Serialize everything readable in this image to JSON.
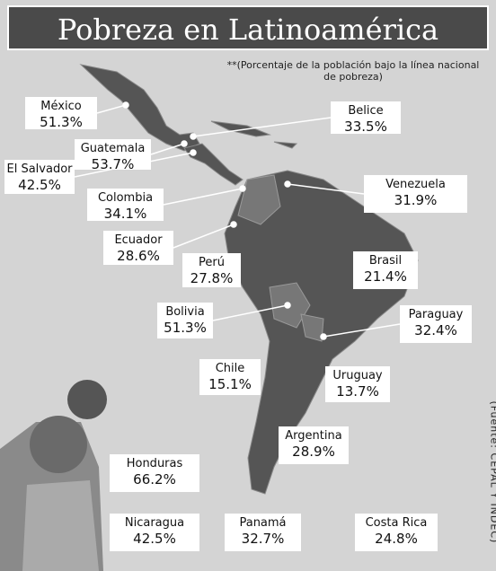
{
  "title": "Pobreza en Latinoamérica",
  "note": "**(Porcentaje de la población bajo la línea nacional de pobreza)",
  "source": "(Fuente: CEPAL Y INDEC)",
  "labels": [
    {
      "country": "México",
      "value": "51.3%"
    },
    {
      "country": "Belice",
      "value": "33.5%"
    },
    {
      "country": "Guatemala",
      "value": "53.7%"
    },
    {
      "country": "El Salvador",
      "value": "42.5%"
    },
    {
      "country": "Venezuela",
      "value": "31.9%"
    },
    {
      "country": "Colombia",
      "value": "34.1%"
    },
    {
      "country": "Ecuador",
      "value": "28.6%"
    },
    {
      "country": "Perú",
      "value": "27.8%"
    },
    {
      "country": "Brasil",
      "value": "21.4%"
    },
    {
      "country": "Bolivia",
      "value": "51.3%"
    },
    {
      "country": "Paraguay",
      "value": "32.4%"
    },
    {
      "country": "Chile",
      "value": "15.1%"
    },
    {
      "country": "Uruguay",
      "value": "13.7%"
    },
    {
      "country": "Argentina",
      "value": "28.9%"
    },
    {
      "country": "Honduras",
      "value": "66.2%"
    },
    {
      "country": "Nicaragua",
      "value": "42.5%"
    },
    {
      "country": "Panamá",
      "value": "32.7%"
    },
    {
      "country": "Costa Rica",
      "value": "24.8%"
    }
  ]
}
